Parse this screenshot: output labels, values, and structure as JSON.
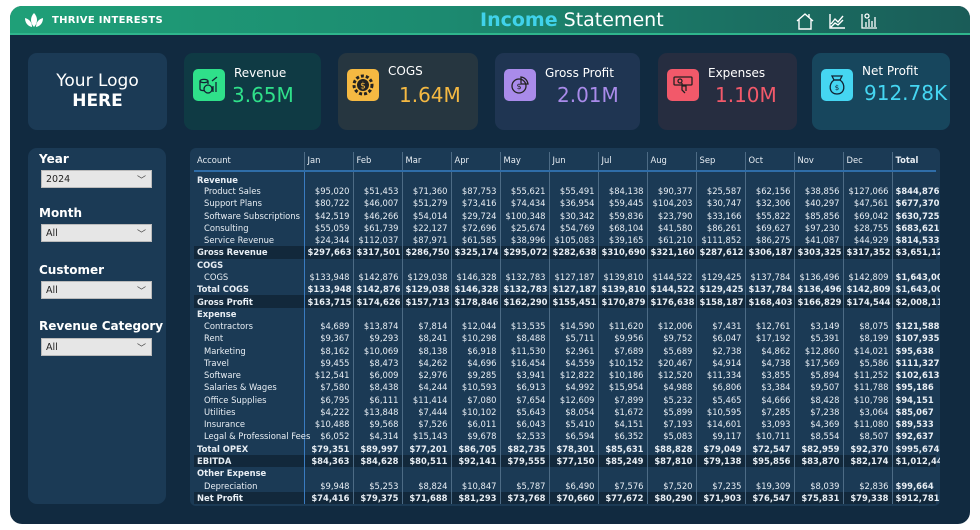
{
  "header": {
    "brand": "THRIVE INTERESTS",
    "title_accent": "Income",
    "title_rest": "Statement",
    "nav_icons": [
      "home-icon",
      "line-chart-icon",
      "bar-chart-icon"
    ],
    "brand_color": "#1fa078",
    "accent_color": "#40d2ea"
  },
  "logo": {
    "line1": "Your Logo",
    "line2": "HERE"
  },
  "kpis": [
    {
      "label": "Revenue",
      "value": "3.65M",
      "color": "#2fe08a",
      "icon": "revenue-coins-chart-icon"
    },
    {
      "label": "COGS",
      "value": "1.64M",
      "color": "#f5b942",
      "icon": "gear-dollar-icon"
    },
    {
      "label": "Gross Profit",
      "value": "2.01M",
      "color": "#a98bea",
      "icon": "pie-chart-dollar-icon"
    },
    {
      "label": "Expenses",
      "value": "1.10M",
      "color": "#f2596a",
      "icon": "hand-payment-icon"
    },
    {
      "label": "Net Profit",
      "value": "912.78K",
      "color": "#45d6f2",
      "icon": "money-bag-icon"
    }
  ],
  "filters": [
    {
      "label": "Year",
      "value": "2024"
    },
    {
      "label": "Month",
      "value": "All"
    },
    {
      "label": "Customer",
      "value": "All"
    },
    {
      "label": "Revenue Category",
      "value": "All"
    }
  ],
  "table": {
    "columns": [
      "Account",
      "Jan",
      "Feb",
      "Mar",
      "Apr",
      "May",
      "Jun",
      "Jul",
      "Aug",
      "Sep",
      "Oct",
      "Nov",
      "Dec",
      "Total"
    ],
    "rows": [
      {
        "label": "Revenue",
        "type": "group",
        "values": []
      },
      {
        "label": "Product Sales",
        "type": "item",
        "values": [
          "$95,020",
          "$51,453",
          "$71,360",
          "$87,753",
          "$55,621",
          "$55,491",
          "$84,138",
          "$90,377",
          "$25,587",
          "$62,156",
          "$38,856",
          "$127,066",
          "$844,876"
        ]
      },
      {
        "label": "Support Plans",
        "type": "item",
        "values": [
          "$80,722",
          "$46,007",
          "$51,279",
          "$73,416",
          "$74,434",
          "$36,954",
          "$59,445",
          "$104,203",
          "$30,747",
          "$32,306",
          "$40,297",
          "$47,561",
          "$677,370"
        ]
      },
      {
        "label": "Software Subscriptions",
        "type": "item",
        "values": [
          "$42,519",
          "$46,266",
          "$54,014",
          "$29,724",
          "$100,348",
          "$30,342",
          "$59,836",
          "$23,790",
          "$33,166",
          "$55,822",
          "$85,856",
          "$69,042",
          "$630,725"
        ]
      },
      {
        "label": "Consulting",
        "type": "item",
        "values": [
          "$55,059",
          "$61,739",
          "$22,127",
          "$72,696",
          "$25,674",
          "$54,769",
          "$68,104",
          "$41,580",
          "$86,261",
          "$69,627",
          "$97,230",
          "$28,755",
          "$683,621"
        ]
      },
      {
        "label": "Service Revenue",
        "type": "item",
        "values": [
          "$24,344",
          "$112,037",
          "$87,971",
          "$61,585",
          "$38,996",
          "$105,083",
          "$39,165",
          "$61,210",
          "$111,852",
          "$86,275",
          "$41,087",
          "$44,929",
          "$814,533"
        ]
      },
      {
        "label": "Gross Revenue",
        "type": "bold hl",
        "values": [
          "$297,663",
          "$317,501",
          "$286,750",
          "$325,174",
          "$295,072",
          "$282,638",
          "$310,690",
          "$321,160",
          "$287,612",
          "$306,187",
          "$303,325",
          "$317,352",
          "$3,651,125"
        ]
      },
      {
        "label": "COGS",
        "type": "group",
        "values": []
      },
      {
        "label": "COGS",
        "type": "item",
        "values": [
          "$133,948",
          "$142,876",
          "$129,038",
          "$146,328",
          "$132,783",
          "$127,187",
          "$139,810",
          "$144,522",
          "$129,425",
          "$137,784",
          "$136,496",
          "$142,809",
          "$1,643,006"
        ]
      },
      {
        "label": "Total COGS",
        "type": "bold",
        "values": [
          "$133,948",
          "$142,876",
          "$129,038",
          "$146,328",
          "$132,783",
          "$127,187",
          "$139,810",
          "$144,522",
          "$129,425",
          "$137,784",
          "$136,496",
          "$142,809",
          "$1,643,006"
        ]
      },
      {
        "label": "Gross Profit",
        "type": "bold hl",
        "values": [
          "$163,715",
          "$174,626",
          "$157,713",
          "$178,846",
          "$162,290",
          "$155,451",
          "$170,879",
          "$176,638",
          "$158,187",
          "$168,403",
          "$166,829",
          "$174,544",
          "$2,008,119"
        ]
      },
      {
        "label": "Expense",
        "type": "group",
        "values": []
      },
      {
        "label": "Contractors",
        "type": "item",
        "values": [
          "$4,689",
          "$13,874",
          "$7,814",
          "$12,044",
          "$13,535",
          "$14,590",
          "$11,620",
          "$12,006",
          "$7,431",
          "$12,761",
          "$3,149",
          "$8,075",
          "$121,588"
        ]
      },
      {
        "label": "Rent",
        "type": "item",
        "values": [
          "$9,367",
          "$9,293",
          "$8,241",
          "$10,298",
          "$8,488",
          "$5,711",
          "$9,956",
          "$9,752",
          "$6,047",
          "$17,192",
          "$5,391",
          "$8,199",
          "$107,935"
        ]
      },
      {
        "label": "Marketing",
        "type": "item",
        "values": [
          "$8,162",
          "$10,069",
          "$8,138",
          "$6,918",
          "$11,530",
          "$2,961",
          "$7,689",
          "$5,689",
          "$2,738",
          "$4,862",
          "$12,860",
          "$14,021",
          "$95,638"
        ]
      },
      {
        "label": "Travel",
        "type": "item",
        "values": [
          "$9,455",
          "$8,473",
          "$4,262",
          "$4,696",
          "$16,454",
          "$4,559",
          "$10,152",
          "$20,467",
          "$4,914",
          "$4,738",
          "$17,569",
          "$5,586",
          "$111,327"
        ]
      },
      {
        "label": "Software",
        "type": "item",
        "values": [
          "$12,541",
          "$6,009",
          "$2,976",
          "$9,285",
          "$3,941",
          "$12,822",
          "$10,186",
          "$12,520",
          "$11,334",
          "$3,855",
          "$5,894",
          "$11,252",
          "$102,613"
        ]
      },
      {
        "label": "Salaries & Wages",
        "type": "item",
        "values": [
          "$7,580",
          "$8,438",
          "$4,244",
          "$10,593",
          "$6,913",
          "$4,992",
          "$15,954",
          "$4,988",
          "$6,806",
          "$3,384",
          "$9,507",
          "$11,788",
          "$95,186"
        ]
      },
      {
        "label": "Office Supplies",
        "type": "item",
        "values": [
          "$6,795",
          "$6,111",
          "$11,414",
          "$7,080",
          "$7,654",
          "$12,609",
          "$7,899",
          "$5,232",
          "$5,465",
          "$4,666",
          "$8,428",
          "$10,798",
          "$94,151"
        ]
      },
      {
        "label": "Utilities",
        "type": "item",
        "values": [
          "$4,222",
          "$13,848",
          "$7,444",
          "$10,102",
          "$5,643",
          "$8,054",
          "$1,672",
          "$5,899",
          "$10,595",
          "$7,285",
          "$7,238",
          "$3,064",
          "$85,067"
        ]
      },
      {
        "label": "Insurance",
        "type": "item",
        "values": [
          "$10,488",
          "$9,568",
          "$7,526",
          "$6,011",
          "$6,043",
          "$5,410",
          "$4,151",
          "$7,193",
          "$14,601",
          "$3,093",
          "$4,369",
          "$11,080",
          "$89,533"
        ]
      },
      {
        "label": "Legal & Professional Fees",
        "type": "item",
        "values": [
          "$6,052",
          "$4,314",
          "$15,143",
          "$9,678",
          "$2,533",
          "$6,594",
          "$6,352",
          "$5,083",
          "$9,117",
          "$10,711",
          "$8,554",
          "$8,507",
          "$92,637"
        ]
      },
      {
        "label": "Total OPEX",
        "type": "bold",
        "values": [
          "$79,351",
          "$89,997",
          "$77,201",
          "$86,705",
          "$82,735",
          "$78,301",
          "$85,631",
          "$88,828",
          "$79,049",
          "$72,547",
          "$82,959",
          "$92,370",
          "$995,674"
        ]
      },
      {
        "label": "EBITDA",
        "type": "bold hl",
        "values": [
          "$84,363",
          "$84,628",
          "$80,511",
          "$92,141",
          "$79,555",
          "$77,150",
          "$85,249",
          "$87,810",
          "$79,138",
          "$95,856",
          "$83,870",
          "$82,174",
          "$1,012,445"
        ]
      },
      {
        "label": "Other Expense",
        "type": "group",
        "values": []
      },
      {
        "label": "Depreciation",
        "type": "item",
        "values": [
          "$9,948",
          "$5,253",
          "$8,824",
          "$10,847",
          "$5,787",
          "$6,490",
          "$7,576",
          "$7,520",
          "$7,235",
          "$19,309",
          "$8,039",
          "$2,836",
          "$99,664"
        ]
      },
      {
        "label": "Net Profit",
        "type": "bold hl",
        "values": [
          "$74,416",
          "$79,375",
          "$71,688",
          "$81,293",
          "$73,768",
          "$70,660",
          "$77,672",
          "$80,290",
          "$71,903",
          "$76,547",
          "$75,831",
          "$79,338",
          "$912,781"
        ]
      }
    ]
  }
}
